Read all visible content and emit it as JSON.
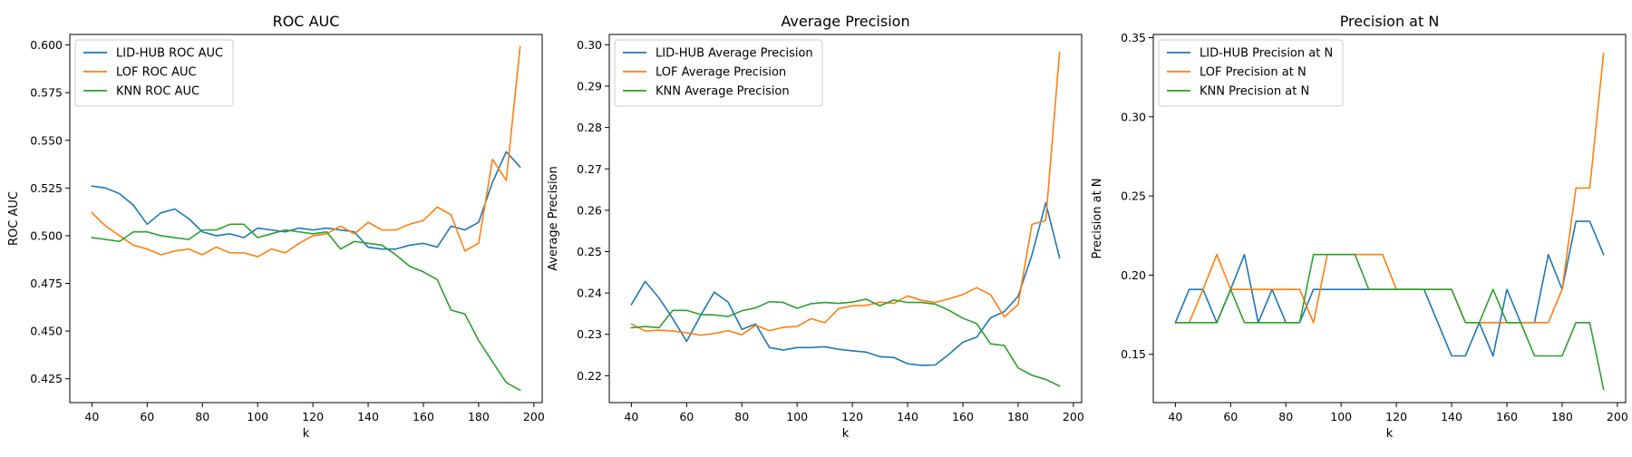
{
  "chart_data": [
    {
      "type": "line",
      "title": "ROC AUC",
      "xlabel": "k",
      "ylabel": "ROC AUC",
      "xlim": [
        32,
        203
      ],
      "ylim": [
        0.4125,
        0.6055
      ],
      "xticks": [
        40,
        60,
        80,
        100,
        120,
        140,
        160,
        180,
        200
      ],
      "yticks": [
        0.425,
        0.45,
        0.475,
        0.5,
        0.525,
        0.55,
        0.575,
        0.6
      ],
      "ytick_format": 3,
      "legend": "top-left",
      "grid": false,
      "x": [
        40,
        45,
        50,
        55,
        60,
        65,
        70,
        75,
        80,
        85,
        90,
        95,
        100,
        105,
        110,
        115,
        120,
        125,
        130,
        135,
        140,
        145,
        150,
        155,
        160,
        165,
        170,
        175,
        180,
        185,
        190,
        195
      ],
      "series": [
        {
          "name": "LID-HUB ROC AUC",
          "color": "#1f77b4",
          "values": [
            0.526,
            0.525,
            0.522,
            0.516,
            0.506,
            0.512,
            0.514,
            0.509,
            0.502,
            0.5,
            0.501,
            0.499,
            0.504,
            0.503,
            0.502,
            0.504,
            0.503,
            0.504,
            0.503,
            0.502,
            0.494,
            0.493,
            0.493,
            0.495,
            0.496,
            0.494,
            0.505,
            0.503,
            0.507,
            0.528,
            0.544,
            0.536
          ]
        },
        {
          "name": "LOF ROC AUC",
          "color": "#ff7f0e",
          "values": [
            0.512,
            0.505,
            0.5,
            0.495,
            0.493,
            0.49,
            0.492,
            0.493,
            0.49,
            0.494,
            0.491,
            0.491,
            0.489,
            0.493,
            0.491,
            0.496,
            0.5,
            0.501,
            0.505,
            0.501,
            0.507,
            0.503,
            0.503,
            0.506,
            0.508,
            0.515,
            0.511,
            0.492,
            0.496,
            0.54,
            0.529,
            0.599
          ]
        },
        {
          "name": "KNN ROC AUC",
          "color": "#2ca02c",
          "values": [
            0.499,
            0.498,
            0.497,
            0.502,
            0.502,
            0.5,
            0.499,
            0.498,
            0.503,
            0.503,
            0.506,
            0.506,
            0.499,
            0.501,
            0.503,
            0.502,
            0.501,
            0.502,
            0.493,
            0.497,
            0.496,
            0.495,
            0.49,
            0.484,
            0.481,
            0.477,
            0.461,
            0.459,
            0.445,
            0.434,
            0.423,
            0.419
          ]
        }
      ]
    },
    {
      "type": "line",
      "title": "Average Precision",
      "xlabel": "k",
      "ylabel": "Average Precision",
      "xlim": [
        32,
        203
      ],
      "ylim": [
        0.2135,
        0.3025
      ],
      "xticks": [
        40,
        60,
        80,
        100,
        120,
        140,
        160,
        180,
        200
      ],
      "yticks": [
        0.22,
        0.23,
        0.24,
        0.25,
        0.26,
        0.27,
        0.28,
        0.29,
        0.3
      ],
      "ytick_format": 2,
      "legend": "top-left",
      "grid": false,
      "x": [
        40,
        45,
        50,
        55,
        60,
        65,
        70,
        75,
        80,
        85,
        90,
        95,
        100,
        105,
        110,
        115,
        120,
        125,
        130,
        135,
        140,
        145,
        150,
        155,
        160,
        165,
        170,
        175,
        180,
        185,
        190,
        195
      ],
      "series": [
        {
          "name": "LID-HUB Average Precision",
          "color": "#1f77b4",
          "values": [
            0.2372,
            0.2428,
            0.2388,
            0.2338,
            0.2283,
            0.2345,
            0.2402,
            0.2378,
            0.2312,
            0.2325,
            0.2268,
            0.2262,
            0.2268,
            0.2268,
            0.227,
            0.2264,
            0.226,
            0.2257,
            0.2246,
            0.2244,
            0.2229,
            0.2225,
            0.2226,
            0.2252,
            0.2281,
            0.2293,
            0.234,
            0.2355,
            0.2392,
            0.2492,
            0.2618,
            0.2485
          ]
        },
        {
          "name": "LOF Average Precision",
          "color": "#ff7f0e",
          "values": [
            0.2325,
            0.2308,
            0.231,
            0.2308,
            0.2304,
            0.2298,
            0.2302,
            0.2309,
            0.2299,
            0.2322,
            0.2309,
            0.2317,
            0.2319,
            0.2338,
            0.2328,
            0.2362,
            0.2369,
            0.237,
            0.2378,
            0.2375,
            0.2393,
            0.2382,
            0.2377,
            0.2386,
            0.2396,
            0.2413,
            0.2396,
            0.2342,
            0.2372,
            0.2566,
            0.2575,
            0.2982
          ]
        },
        {
          "name": "KNN Average Precision",
          "color": "#2ca02c",
          "values": [
            0.2316,
            0.2319,
            0.2316,
            0.2358,
            0.2358,
            0.2348,
            0.2347,
            0.2343,
            0.2357,
            0.2364,
            0.2379,
            0.2377,
            0.2363,
            0.2374,
            0.2377,
            0.2375,
            0.2378,
            0.2385,
            0.2369,
            0.2383,
            0.2377,
            0.2377,
            0.2373,
            0.2358,
            0.2339,
            0.2326,
            0.2277,
            0.2273,
            0.2219,
            0.2201,
            0.2191,
            0.2175
          ]
        }
      ]
    },
    {
      "type": "line",
      "title": "Precision at N",
      "xlabel": "k",
      "ylabel": "Precision at N",
      "xlim": [
        32,
        203
      ],
      "ylim": [
        0.1195,
        0.352
      ],
      "xticks": [
        40,
        60,
        80,
        100,
        120,
        140,
        160,
        180,
        200
      ],
      "yticks": [
        0.15,
        0.2,
        0.25,
        0.3,
        0.35
      ],
      "ytick_format": 2,
      "legend": "top-left",
      "grid": false,
      "x": [
        40,
        45,
        50,
        55,
        60,
        65,
        70,
        75,
        80,
        85,
        90,
        95,
        100,
        105,
        110,
        115,
        120,
        125,
        130,
        135,
        140,
        145,
        150,
        155,
        160,
        165,
        170,
        175,
        180,
        185,
        190,
        195
      ],
      "series": [
        {
          "name": "LID-HUB Precision at N",
          "color": "#1f77b4",
          "values": [
            0.17,
            0.191,
            0.191,
            0.17,
            0.191,
            0.213,
            0.17,
            0.191,
            0.17,
            0.17,
            0.191,
            0.191,
            0.191,
            0.191,
            0.191,
            0.191,
            0.191,
            0.191,
            0.191,
            0.17,
            0.149,
            0.149,
            0.17,
            0.149,
            0.191,
            0.17,
            0.17,
            0.213,
            0.191,
            0.234,
            0.234,
            0.213
          ]
        },
        {
          "name": "LOF Precision at N",
          "color": "#ff7f0e",
          "values": [
            0.17,
            0.17,
            0.191,
            0.213,
            0.191,
            0.191,
            0.191,
            0.191,
            0.191,
            0.191,
            0.17,
            0.213,
            0.213,
            0.213,
            0.213,
            0.213,
            0.191,
            0.191,
            0.191,
            0.191,
            0.191,
            0.17,
            0.17,
            0.17,
            0.17,
            0.17,
            0.17,
            0.17,
            0.191,
            0.255,
            0.255,
            0.34
          ]
        },
        {
          "name": "KNN Precision at N",
          "color": "#2ca02c",
          "values": [
            0.17,
            0.17,
            0.17,
            0.17,
            0.191,
            0.17,
            0.17,
            0.17,
            0.17,
            0.17,
            0.213,
            0.213,
            0.213,
            0.213,
            0.191,
            0.191,
            0.191,
            0.191,
            0.191,
            0.191,
            0.191,
            0.17,
            0.17,
            0.191,
            0.17,
            0.17,
            0.149,
            0.149,
            0.149,
            0.17,
            0.17,
            0.128
          ]
        }
      ]
    }
  ]
}
